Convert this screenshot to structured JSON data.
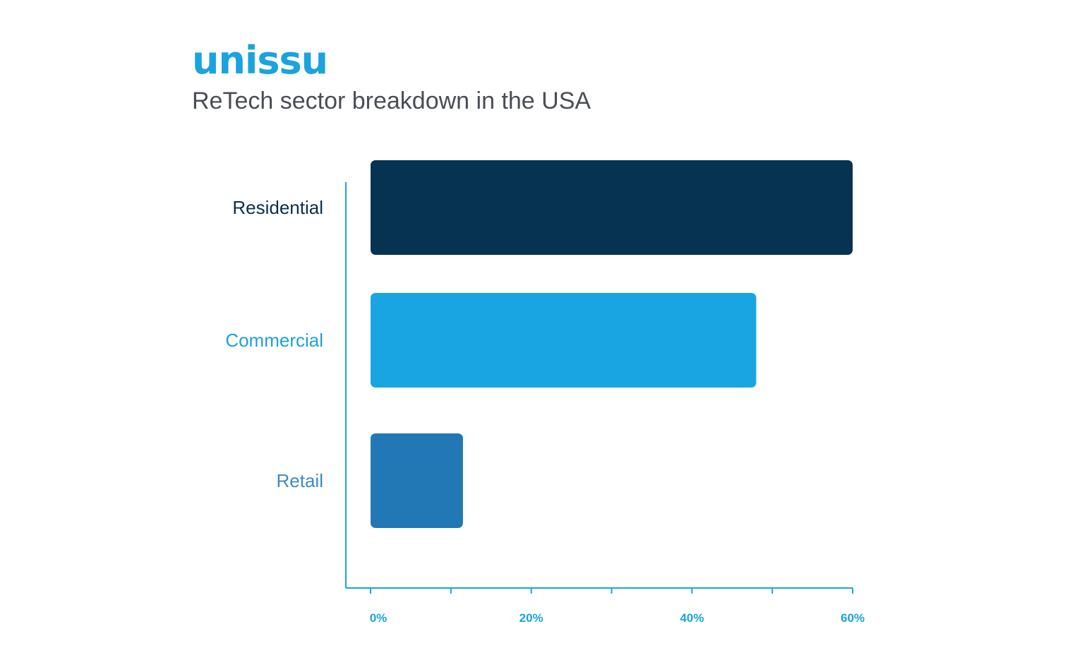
{
  "brand": {
    "logo_text": "unissu",
    "color": "#1aa3de"
  },
  "chart_data": {
    "type": "bar",
    "orientation": "horizontal",
    "title": "ReTech sector breakdown in the USA",
    "categories": [
      "Residential",
      "Commercial",
      "Retail"
    ],
    "values": [
      60,
      48,
      11.5
    ],
    "colors": [
      "#063352",
      "#19a5e1",
      "#2178b5"
    ],
    "label_colors": [
      "#0a2e4d",
      "#1ea0db",
      "#3d8cc0"
    ],
    "xlim": [
      0,
      60
    ],
    "xticks": [
      "0%",
      "20%",
      "40%",
      "60%"
    ],
    "xtick_values": [
      0,
      20,
      40,
      60
    ],
    "minor_tick_values": [
      10,
      30,
      50
    ],
    "axis_color": "#1aa3de",
    "grid": false,
    "legend": "none"
  }
}
